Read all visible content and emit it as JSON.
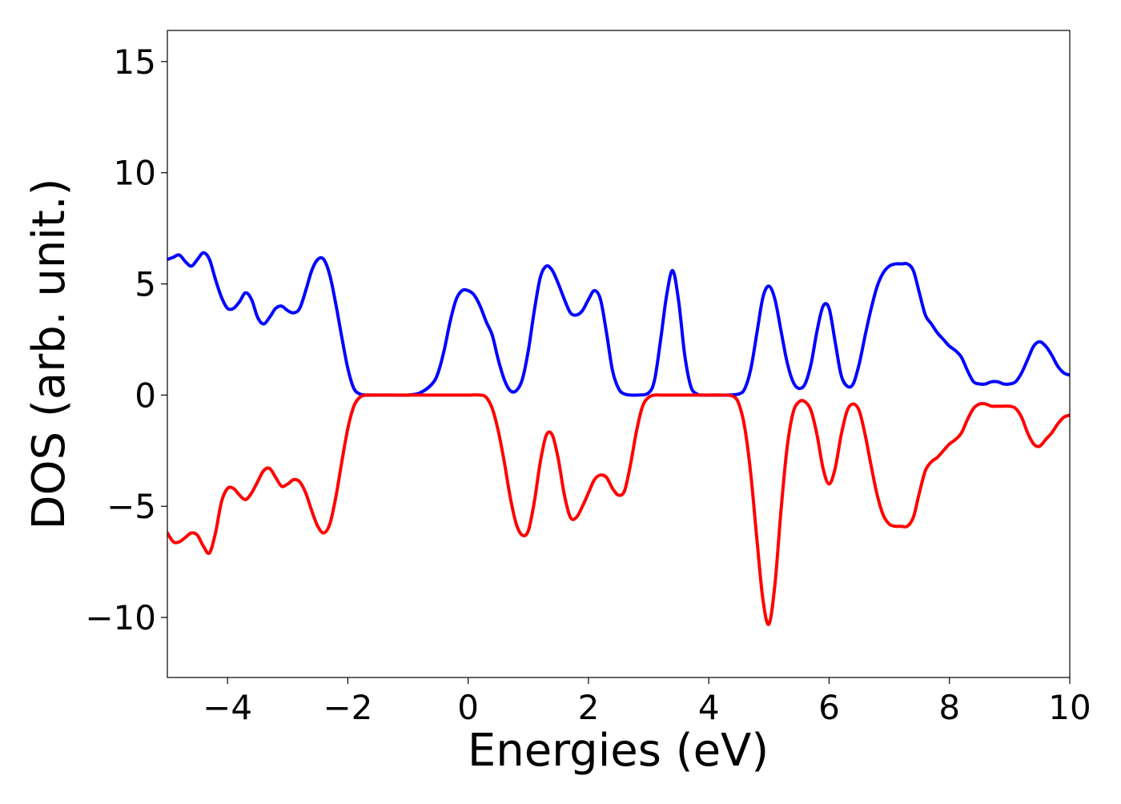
{
  "chart_data": {
    "type": "line",
    "title": "",
    "xlabel": "Energies (eV)",
    "ylabel": "DOS (arb. unit.)",
    "xlim": [
      -5,
      10
    ],
    "ylim": [
      -12.7,
      16.4
    ],
    "xticks": [
      -4,
      -2,
      0,
      2,
      4,
      6,
      8,
      10
    ],
    "xtick_labels": [
      "−4",
      "−2",
      "0",
      "2",
      "4",
      "6",
      "8",
      "10"
    ],
    "yticks": [
      -10,
      -5,
      0,
      5,
      10,
      15
    ],
    "ytick_labels": [
      "−10",
      "−5",
      "0",
      "5",
      "10",
      "15"
    ],
    "grid": false,
    "legend": "none",
    "series": [
      {
        "color": "#0000ff",
        "x": [
          -5.0,
          -4.9,
          -4.8,
          -4.7,
          -4.6,
          -4.5,
          -4.4,
          -4.3,
          -4.2,
          -4.1,
          -4.0,
          -3.9,
          -3.8,
          -3.7,
          -3.6,
          -3.5,
          -3.4,
          -3.3,
          -3.2,
          -3.1,
          -3.0,
          -2.9,
          -2.8,
          -2.7,
          -2.6,
          -2.5,
          -2.4,
          -2.3,
          -2.2,
          -2.1,
          -2.0,
          -1.9,
          -1.8,
          -1.7,
          -1.6,
          -1.4,
          -1.2,
          -1.0,
          -0.8,
          -0.6,
          -0.5,
          -0.4,
          -0.3,
          -0.2,
          -0.1,
          0.0,
          0.1,
          0.2,
          0.3,
          0.4,
          0.5,
          0.6,
          0.7,
          0.8,
          0.9,
          1.0,
          1.1,
          1.2,
          1.3,
          1.4,
          1.5,
          1.6,
          1.7,
          1.8,
          1.9,
          2.0,
          2.1,
          2.2,
          2.3,
          2.4,
          2.5,
          2.6,
          2.8,
          3.0,
          3.1,
          3.2,
          3.3,
          3.4,
          3.5,
          3.6,
          3.7,
          3.8,
          3.9,
          4.1,
          4.3,
          4.5,
          4.6,
          4.7,
          4.8,
          4.9,
          5.0,
          5.1,
          5.2,
          5.3,
          5.4,
          5.5,
          5.6,
          5.7,
          5.8,
          5.9,
          6.0,
          6.1,
          6.2,
          6.3,
          6.4,
          6.5,
          6.6,
          6.7,
          6.8,
          6.9,
          7.0,
          7.1,
          7.2,
          7.3,
          7.4,
          7.5,
          7.6,
          7.7,
          7.8,
          7.9,
          8.0,
          8.1,
          8.2,
          8.3,
          8.4,
          8.5,
          8.6,
          8.7,
          8.8,
          8.9,
          9.0,
          9.1,
          9.2,
          9.3,
          9.4,
          9.5,
          9.6,
          9.7,
          9.8,
          9.9,
          10.0
        ],
        "y": [
          6.1,
          6.2,
          6.3,
          6.0,
          5.8,
          6.1,
          6.4,
          6.1,
          5.2,
          4.4,
          3.9,
          3.9,
          4.2,
          4.6,
          4.3,
          3.5,
          3.2,
          3.5,
          3.9,
          4.0,
          3.8,
          3.7,
          3.9,
          4.7,
          5.6,
          6.1,
          6.1,
          5.4,
          4.1,
          2.6,
          1.2,
          0.3,
          0.05,
          0.0,
          0.0,
          0.0,
          0.0,
          0.0,
          0.1,
          0.5,
          1.0,
          2.0,
          3.3,
          4.3,
          4.7,
          4.7,
          4.5,
          4.0,
          3.3,
          2.7,
          1.6,
          0.7,
          0.2,
          0.2,
          0.7,
          2.0,
          3.8,
          5.3,
          5.8,
          5.6,
          5.0,
          4.3,
          3.7,
          3.6,
          3.8,
          4.3,
          4.7,
          4.3,
          2.8,
          1.1,
          0.3,
          0.05,
          0.0,
          0.1,
          0.7,
          2.5,
          4.5,
          5.6,
          4.2,
          1.8,
          0.4,
          0.05,
          0.0,
          0.0,
          0.0,
          0.05,
          0.3,
          1.2,
          2.8,
          4.4,
          4.9,
          4.3,
          2.9,
          1.5,
          0.6,
          0.3,
          0.5,
          1.4,
          2.9,
          4.0,
          3.9,
          2.4,
          0.9,
          0.4,
          0.5,
          1.4,
          2.7,
          3.9,
          4.9,
          5.5,
          5.8,
          5.9,
          5.9,
          5.9,
          5.6,
          4.6,
          3.6,
          3.2,
          2.8,
          2.5,
          2.2,
          2.0,
          1.7,
          1.1,
          0.6,
          0.5,
          0.5,
          0.6,
          0.6,
          0.5,
          0.5,
          0.6,
          1.0,
          1.6,
          2.2,
          2.4,
          2.2,
          1.8,
          1.3,
          1.0,
          0.9
        ]
      },
      {
        "color": "#ff0000",
        "x": [
          -5.0,
          -4.9,
          -4.8,
          -4.7,
          -4.6,
          -4.5,
          -4.4,
          -4.3,
          -4.2,
          -4.1,
          -4.0,
          -3.9,
          -3.8,
          -3.7,
          -3.6,
          -3.5,
          -3.4,
          -3.3,
          -3.2,
          -3.1,
          -3.0,
          -2.9,
          -2.8,
          -2.7,
          -2.6,
          -2.5,
          -2.4,
          -2.3,
          -2.2,
          -2.1,
          -2.0,
          -1.9,
          -1.8,
          -1.7,
          -1.6,
          -1.4,
          -1.2,
          -1.0,
          -0.8,
          -0.5,
          -0.2,
          0.0,
          0.2,
          0.3,
          0.4,
          0.5,
          0.6,
          0.7,
          0.8,
          0.9,
          1.0,
          1.1,
          1.2,
          1.3,
          1.4,
          1.5,
          1.6,
          1.7,
          1.8,
          1.9,
          2.0,
          2.1,
          2.2,
          2.3,
          2.4,
          2.5,
          2.6,
          2.7,
          2.8,
          2.9,
          3.0,
          3.1,
          3.2,
          3.4,
          3.6,
          3.8,
          4.0,
          4.2,
          4.4,
          4.5,
          4.6,
          4.7,
          4.8,
          4.9,
          5.0,
          5.1,
          5.2,
          5.3,
          5.4,
          5.5,
          5.6,
          5.7,
          5.8,
          5.9,
          6.0,
          6.1,
          6.2,
          6.3,
          6.4,
          6.5,
          6.6,
          6.7,
          6.8,
          6.9,
          7.0,
          7.1,
          7.2,
          7.3,
          7.4,
          7.5,
          7.6,
          7.7,
          7.8,
          7.9,
          8.0,
          8.1,
          8.2,
          8.3,
          8.4,
          8.5,
          8.6,
          8.7,
          8.8,
          8.9,
          9.0,
          9.1,
          9.2,
          9.3,
          9.4,
          9.5,
          9.6,
          9.7,
          9.8,
          9.9,
          10.0
        ],
        "y": [
          -6.2,
          -6.6,
          -6.6,
          -6.4,
          -6.2,
          -6.3,
          -6.8,
          -7.1,
          -6.2,
          -4.8,
          -4.2,
          -4.2,
          -4.5,
          -4.7,
          -4.4,
          -3.9,
          -3.4,
          -3.3,
          -3.7,
          -4.1,
          -4.0,
          -3.8,
          -3.9,
          -4.4,
          -5.2,
          -5.9,
          -6.2,
          -5.8,
          -4.6,
          -3.0,
          -1.5,
          -0.5,
          -0.1,
          0.0,
          0.0,
          0.0,
          0.0,
          0.0,
          0.0,
          0.0,
          0.0,
          0.0,
          0.0,
          -0.1,
          -0.6,
          -1.6,
          -3.0,
          -4.6,
          -5.8,
          -6.3,
          -6.1,
          -4.8,
          -3.0,
          -1.8,
          -1.8,
          -2.9,
          -4.5,
          -5.5,
          -5.5,
          -5.0,
          -4.4,
          -3.8,
          -3.6,
          -3.7,
          -4.2,
          -4.5,
          -4.3,
          -3.1,
          -1.6,
          -0.5,
          -0.1,
          0.0,
          0.0,
          0.0,
          0.0,
          0.0,
          0.0,
          0.0,
          -0.05,
          -0.4,
          -1.5,
          -3.6,
          -6.5,
          -9.2,
          -10.3,
          -8.5,
          -5.2,
          -2.4,
          -0.8,
          -0.3,
          -0.3,
          -0.7,
          -1.8,
          -3.3,
          -4.0,
          -3.3,
          -1.8,
          -0.7,
          -0.4,
          -0.7,
          -1.8,
          -3.2,
          -4.5,
          -5.4,
          -5.8,
          -5.9,
          -5.9,
          -5.9,
          -5.5,
          -4.4,
          -3.4,
          -3.0,
          -2.8,
          -2.5,
          -2.2,
          -2.0,
          -1.7,
          -1.1,
          -0.6,
          -0.4,
          -0.4,
          -0.5,
          -0.5,
          -0.5,
          -0.5,
          -0.6,
          -1.0,
          -1.7,
          -2.2,
          -2.3,
          -2.0,
          -1.7,
          -1.3,
          -1.0,
          -0.9
        ]
      }
    ]
  }
}
